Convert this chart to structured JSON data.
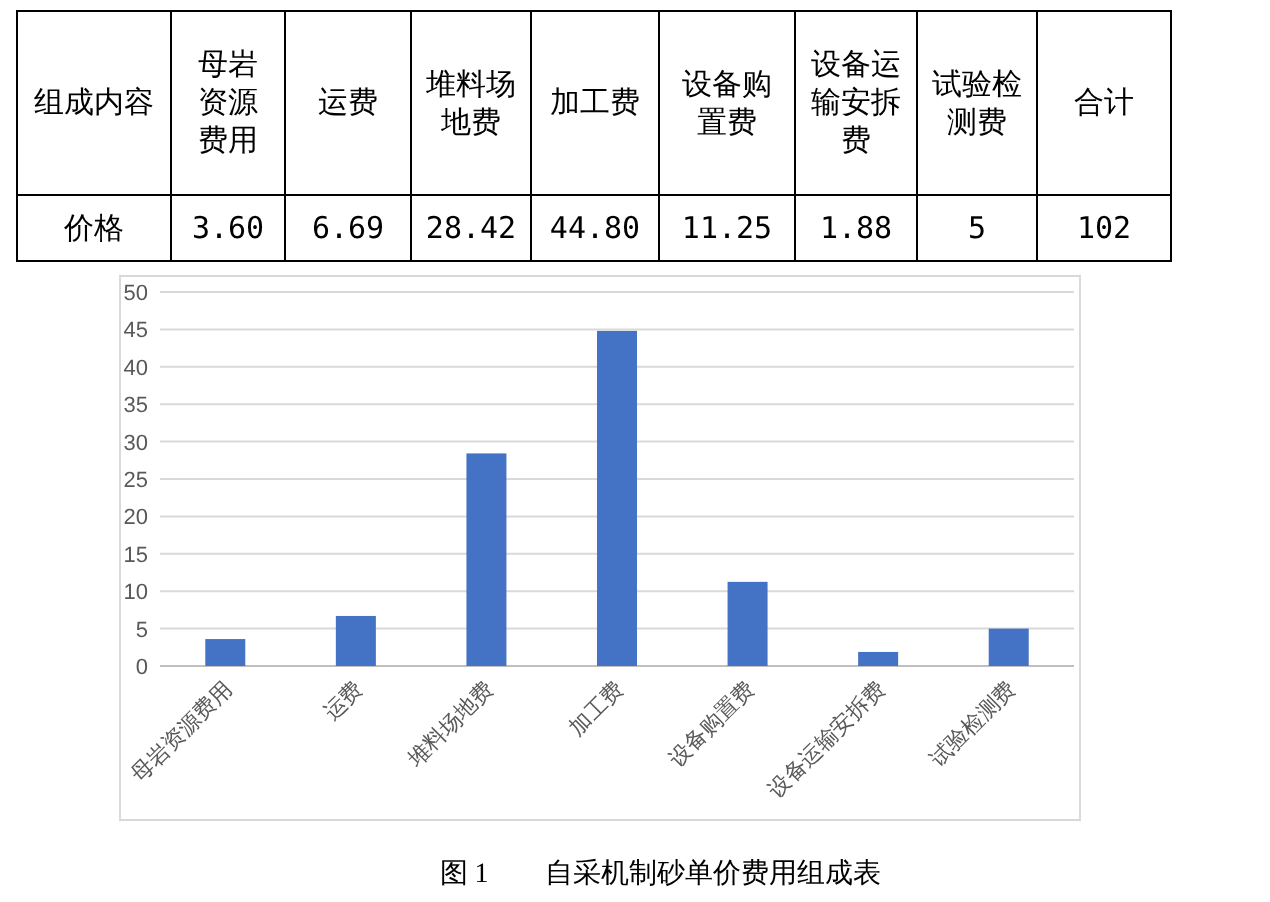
{
  "chart_data": [
    {
      "type": "other",
      "xlabel": "组成内容",
      "ylabel": "价格",
      "categories": [
        "母岩资源费用",
        "运费",
        "堆料场地费",
        "加工费",
        "设备购置费",
        "设备运输安拆费",
        "试验检测费",
        "合计"
      ],
      "value_labels": [
        "3.60",
        "6.69",
        "28.42",
        "44.80",
        "11.25",
        "1.88",
        "5",
        "102"
      ]
    },
    {
      "type": "bar",
      "title": "图 1　　自采机制砂单价费用组成表",
      "categories": [
        "母岩资源费用",
        "运费",
        "堆料场地费",
        "加工费",
        "设备购置费",
        "设备运输安拆费",
        "试验检测费"
      ],
      "values": [
        3.6,
        6.69,
        28.42,
        44.8,
        11.25,
        1.88,
        5
      ],
      "color": "#4472c4",
      "ylim": [
        0,
        50
      ],
      "yticks": [
        0,
        5,
        10,
        15,
        20,
        25,
        30,
        35,
        40,
        45,
        50
      ],
      "grid": "y"
    }
  ]
}
